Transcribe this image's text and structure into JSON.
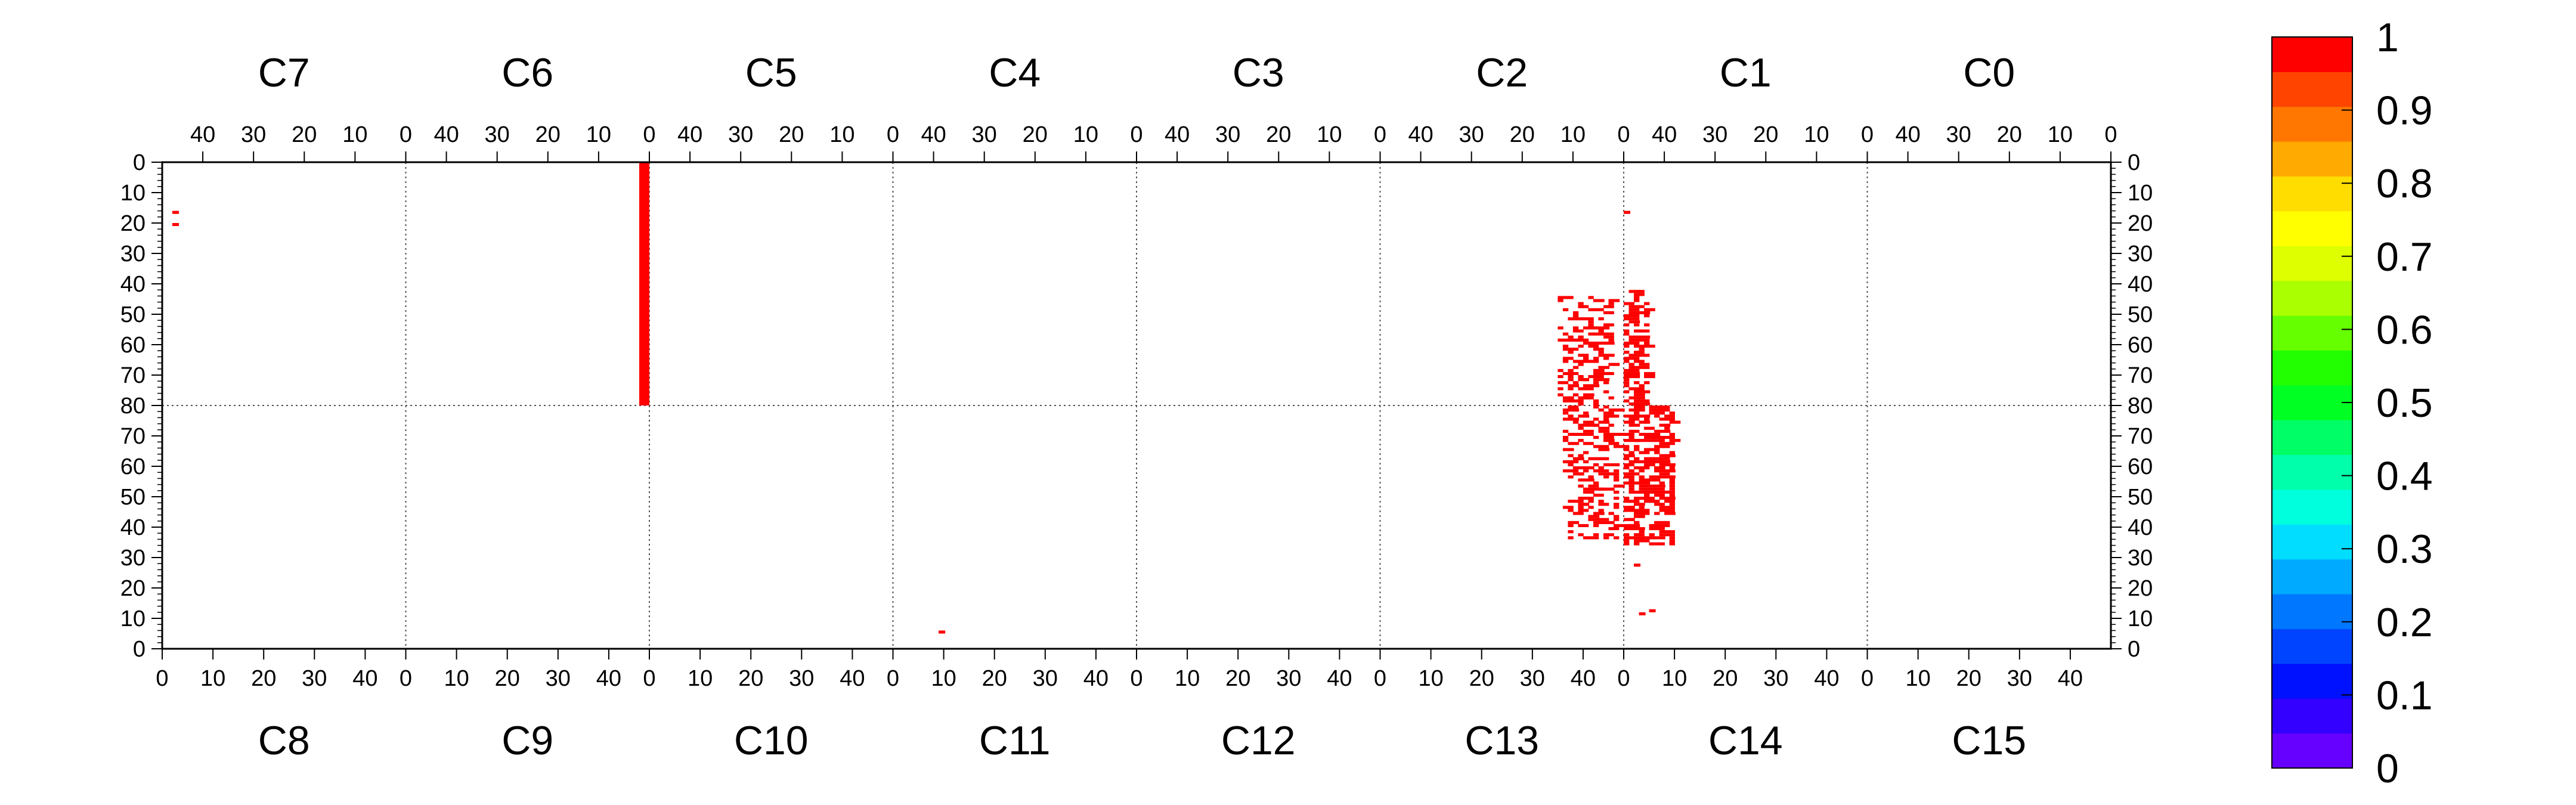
{
  "chart_data": {
    "type": "heatmap",
    "top_sections": [
      "C7",
      "C6",
      "C5",
      "C4",
      "C3",
      "C2",
      "C1",
      "C0"
    ],
    "bottom_sections": [
      "C8",
      "C9",
      "C10",
      "C11",
      "C12",
      "C13",
      "C14",
      "C15"
    ],
    "top_x_ticks": [
      "40",
      "30",
      "20",
      "10",
      "0"
    ],
    "bottom_x_ticks": [
      "0",
      "10",
      "20",
      "30",
      "40"
    ],
    "top_y_ticks": [
      "0",
      "10",
      "20",
      "30",
      "40",
      "50",
      "60",
      "70",
      "80"
    ],
    "bottom_y_ticks": [
      "70",
      "60",
      "50",
      "40",
      "30",
      "20",
      "10",
      "0"
    ],
    "channels_per_section": 48,
    "rows_per_half": 80,
    "colorbar": {
      "ticks": [
        "0",
        "0.1",
        "0.2",
        "0.3",
        "0.4",
        "0.5",
        "0.6",
        "0.7",
        "0.8",
        "0.9",
        "1"
      ],
      "colors": [
        "#6600ff",
        "#3300ff",
        "#0011ff",
        "#0044ff",
        "#0077ff",
        "#00aaff",
        "#00ddff",
        "#00ffdd",
        "#00ffaa",
        "#00ff66",
        "#00ff22",
        "#22ff00",
        "#66ff00",
        "#aaff00",
        "#ddff00",
        "#ffff00",
        "#ffdd00",
        "#ffaa00",
        "#ff7700",
        "#ff4400",
        "#ff0000"
      ]
    },
    "hit_color": "#ff0000",
    "filled_regions": [
      {
        "half": "top",
        "section": "C6",
        "ch_from": 0,
        "ch_to": 2,
        "row_from": 0,
        "row_to": 80,
        "value": 1
      }
    ],
    "hits": [
      {
        "half": "top",
        "section": "C7",
        "ch": 45,
        "row": 16,
        "value": 1
      },
      {
        "half": "top",
        "section": "C7",
        "ch": 45,
        "row": 20,
        "value": 1
      },
      {
        "half": "top",
        "section": "C1",
        "ch": 47,
        "row": 16,
        "value": 1
      },
      {
        "half": "bottom",
        "section": "C11",
        "ch": 9,
        "row": 5,
        "value": 1
      },
      {
        "half": "bottom",
        "section": "C14",
        "ch": 3,
        "row": 11,
        "value": 1
      },
      {
        "half": "bottom",
        "section": "C14",
        "ch": 5,
        "row": 12,
        "value": 1
      },
      {
        "half": "bottom",
        "section": "C14",
        "ch": 2,
        "row": 27,
        "value": 1
      }
    ],
    "clusters": [
      {
        "half": "top",
        "section": "C2",
        "ch_from": 2,
        "ch_to": 13,
        "row_from": 44,
        "row_to": 80,
        "density": 0.35,
        "seed": 11
      },
      {
        "half": "top",
        "section": "C1",
        "ch_from": 43,
        "ch_to": 48,
        "row_from": 42,
        "row_to": 80,
        "density": 0.55,
        "seed": 23
      },
      {
        "half": "bottom",
        "section": "C13",
        "ch_from": 36,
        "ch_to": 47,
        "row_from": 36,
        "row_to": 80,
        "density": 0.35,
        "seed": 37
      },
      {
        "half": "bottom",
        "section": "C14",
        "ch_from": 0,
        "ch_to": 10,
        "row_from": 34,
        "row_to": 80,
        "density": 0.55,
        "seed": 53
      }
    ]
  }
}
